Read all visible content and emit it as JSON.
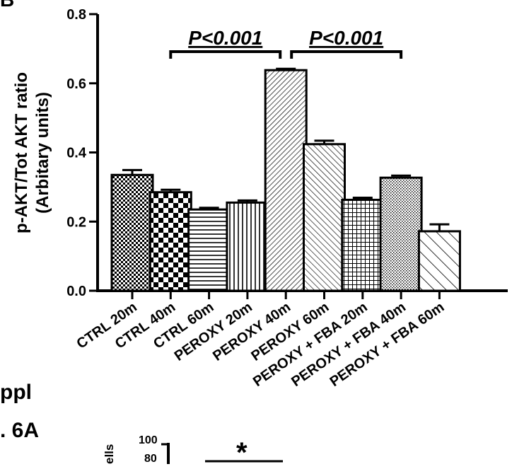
{
  "chart_data": {
    "type": "bar",
    "title": "",
    "xlabel": "",
    "ylabel": "p-AKT/Tot AKT ratio",
    "ylabel_sub": "(Arbitary units)",
    "ylim": [
      0,
      0.8
    ],
    "yticks": [
      "0.0",
      "0.2",
      "0.4",
      "0.6",
      "0.8"
    ],
    "categories": [
      "CTRL 20m",
      "CTRL 40m",
      "CTRL 60m",
      "PEROXY 20m",
      "PEROXY 40m",
      "PEROXY 60m",
      "PEROXY + FBA 20m",
      "PEROXY + FBA 40m",
      "PEROXY + FBA 60m"
    ],
    "values": [
      0.335,
      0.285,
      0.235,
      0.255,
      0.638,
      0.424,
      0.263,
      0.327,
      0.172
    ],
    "errors": [
      0.014,
      0.007,
      0.005,
      0.006,
      0.004,
      0.01,
      0.006,
      0.006,
      0.02
    ],
    "patterns": [
      "fine-check",
      "checker",
      "horizontal",
      "vertical",
      "diag-right-fine",
      "diag-left",
      "grid",
      "dots",
      "diag-left-wide"
    ],
    "annotations": [
      {
        "text": "P<0.001",
        "from_category": 1,
        "to_category": 4
      },
      {
        "text": "P<0.001",
        "from_category": 4,
        "to_category": 7
      }
    ],
    "grid": false,
    "legend": "none"
  },
  "fragments": {
    "top_left": "B",
    "left_line1": "ppl",
    "left_line2": ". 6A",
    "inset_axis_label": "ells",
    "inset_tick": "100",
    "inset_tick2": "80",
    "inset_star": "*"
  }
}
